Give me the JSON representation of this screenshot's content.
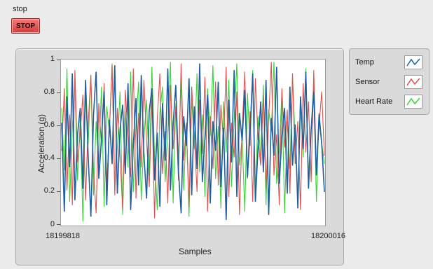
{
  "stop_control": {
    "label": "stop",
    "button_text": "STOP"
  },
  "graph": {
    "ylabel": "Acceleration (g)",
    "xlabel": "Samples",
    "y_ticks": [
      "1",
      "0.8",
      "0.6",
      "0.4",
      "0.2",
      "0"
    ],
    "x_ticks": [
      "18199818",
      "18200016"
    ]
  },
  "legend": {
    "items": [
      {
        "label": "Temp",
        "color": "#1f5fa0"
      },
      {
        "label": "Sensor",
        "color": "#e05050"
      },
      {
        "label": "Heart Rate",
        "color": "#3ad23a"
      }
    ]
  },
  "chart_data": {
    "type": "line",
    "xlabel": "Samples",
    "ylabel": "Acceleration (g)",
    "xlim": [
      18199818,
      18200016
    ],
    "ylim": [
      0,
      1
    ],
    "grid": false,
    "legend_position": "right",
    "x_start": 18199818,
    "x_step": 2,
    "series": [
      {
        "name": "Temp",
        "color": "#1f5fa0",
        "values": [
          0.62,
          0.08,
          0.78,
          0.35,
          0.92,
          0.15,
          0.55,
          0.71,
          0.22,
          0.88,
          0.41,
          0.05,
          0.67,
          0.93,
          0.28,
          0.52,
          0.81,
          0.12,
          0.64,
          0.37,
          0.97,
          0.19,
          0.58,
          0.73,
          0.31,
          0.86,
          0.09,
          0.49,
          0.77,
          0.24,
          0.91,
          0.43,
          0.16,
          0.69,
          0.83,
          0.27,
          0.56,
          0.11,
          0.74,
          0.39,
          0.95,
          0.21,
          0.61,
          0.85,
          0.33,
          0.07,
          0.66,
          0.48,
          0.89,
          0.18,
          0.72,
          0.34,
          0.98,
          0.26,
          0.53,
          0.79,
          0.13,
          0.63,
          0.45,
          0.87,
          0.23,
          0.59,
          0.03,
          0.76,
          0.38,
          0.94,
          0.17,
          0.68,
          0.51,
          0.82,
          0.29,
          0.57,
          0.92,
          0.14,
          0.47,
          0.75,
          0.32,
          0.88,
          0.06,
          0.65,
          0.42,
          0.96,
          0.25,
          0.54,
          0.71,
          0.19,
          0.84,
          0.36,
          0.61,
          0.1,
          0.78,
          0.46,
          0.93,
          0.22,
          0.58,
          0.81,
          0.3,
          0.67,
          0.49,
          0.2
        ]
      },
      {
        "name": "Sensor",
        "color": "#e05050",
        "values": [
          0.45,
          0.83,
          0.21,
          0.67,
          0.12,
          0.94,
          0.38,
          0.56,
          0.79,
          0.15,
          0.62,
          0.91,
          0.33,
          0.07,
          0.74,
          0.48,
          0.86,
          0.25,
          0.59,
          0.97,
          0.18,
          0.71,
          0.42,
          0.09,
          0.82,
          0.53,
          0.29,
          0.95,
          0.16,
          0.68,
          0.35,
          0.88,
          0.51,
          0.23,
          0.77,
          0.04,
          0.64,
          0.92,
          0.31,
          0.57,
          0.13,
          0.85,
          0.46,
          0.72,
          0.27,
          0.98,
          0.39,
          0.61,
          0.11,
          0.84,
          0.54,
          0.2,
          0.76,
          0.43,
          0.9,
          0.08,
          0.66,
          0.34,
          0.87,
          0.24,
          0.73,
          0.5,
          0.96,
          0.17,
          0.62,
          0.41,
          0.81,
          0.06,
          0.58,
          0.93,
          0.28,
          0.69,
          0.14,
          0.89,
          0.52,
          0.36,
          0.79,
          0.22,
          0.65,
          0.99,
          0.3,
          0.55,
          0.12,
          0.83,
          0.47,
          0.7,
          0.19,
          0.92,
          0.37,
          0.63,
          0.09,
          0.86,
          0.44,
          0.75,
          0.26,
          0.94,
          0.33,
          0.6,
          0.81,
          0.42
        ]
      },
      {
        "name": "Heart Rate",
        "color": "#3ad23a",
        "values": [
          0.71,
          0.33,
          0.95,
          0.14,
          0.58,
          0.86,
          0.27,
          0.65,
          0.02,
          0.79,
          0.49,
          0.91,
          0.18,
          0.63,
          0.38,
          0.84,
          0.11,
          0.72,
          0.56,
          0.98,
          0.24,
          0.47,
          0.81,
          0.06,
          0.69,
          0.35,
          0.93,
          0.2,
          0.61,
          0.87,
          0.15,
          0.52,
          0.76,
          0.3,
          0.96,
          0.43,
          0.09,
          0.68,
          0.84,
          0.26,
          0.57,
          0.99,
          0.13,
          0.74,
          0.4,
          0.89,
          0.21,
          0.62,
          0.05,
          0.78,
          0.46,
          0.92,
          0.32,
          0.67,
          0.17,
          0.83,
          0.54,
          0.97,
          0.28,
          0.6,
          0.1,
          0.75,
          0.44,
          0.88,
          0.23,
          0.64,
          0.98,
          0.36,
          0.53,
          0.08,
          0.8,
          0.48,
          0.94,
          0.19,
          0.66,
          0.39,
          0.85,
          0.12,
          0.7,
          0.57,
          0.99,
          0.25,
          0.45,
          0.82,
          0.07,
          0.63,
          0.34,
          0.9,
          0.52,
          0.16,
          0.77,
          0.41,
          0.95,
          0.29,
          0.59,
          0.86,
          0.14,
          0.68,
          0.5,
          0.37
        ]
      }
    ]
  }
}
